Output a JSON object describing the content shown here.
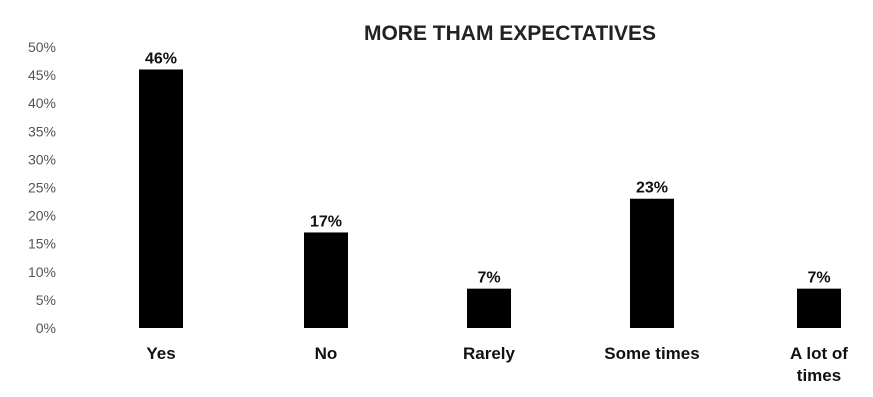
{
  "chart_data": {
    "type": "bar",
    "title": "MORE THAM EXPECTATIVES",
    "categories": [
      "Yes",
      "No",
      "Rarely",
      "Some times",
      "A lot of times"
    ],
    "category_lines": [
      [
        "Yes"
      ],
      [
        "No"
      ],
      [
        "Rarely"
      ],
      [
        "Some times"
      ],
      [
        "A lot of",
        "times"
      ]
    ],
    "values": [
      46,
      17,
      7,
      23,
      7
    ],
    "data_labels": [
      "46%",
      "17%",
      "7%",
      "23%",
      "7%"
    ],
    "ylim": [
      0,
      50
    ],
    "yticks": [
      0,
      5,
      10,
      15,
      20,
      25,
      30,
      35,
      40,
      45,
      50
    ],
    "ytick_labels": [
      "0%",
      "5%",
      "10%",
      "15%",
      "20%",
      "25%",
      "30%",
      "35%",
      "40%",
      "45%",
      "50%"
    ],
    "xlabel": "",
    "ylabel": "",
    "grid": false,
    "legend": "none",
    "colors": {
      "bar": "#000000",
      "text": "#111111",
      "axis_text": "#555555",
      "title": "#222222"
    }
  }
}
